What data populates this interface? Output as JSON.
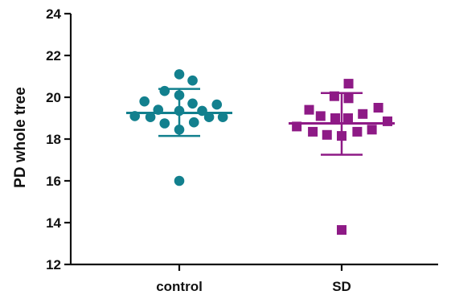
{
  "chart_data": {
    "type": "scatter",
    "title": "",
    "xlabel": "",
    "ylabel": "PD whole tree",
    "ylim": [
      12,
      24
    ],
    "yticks": [
      12,
      14,
      16,
      18,
      20,
      22,
      24
    ],
    "categories": [
      "control",
      "SD"
    ],
    "grid": false,
    "legend": "none",
    "series": [
      {
        "category": "control",
        "marker": "circle",
        "color": "#12808e",
        "points": [
          {
            "offset": 0.0,
            "y": 21.1
          },
          {
            "offset": 0.29,
            "y": 20.8
          },
          {
            "offset": -0.32,
            "y": 20.3
          },
          {
            "offset": 0.0,
            "y": 20.1
          },
          {
            "offset": -0.76,
            "y": 19.8
          },
          {
            "offset": 0.29,
            "y": 19.7
          },
          {
            "offset": 0.82,
            "y": 19.65
          },
          {
            "offset": -0.46,
            "y": 19.4
          },
          {
            "offset": 0.0,
            "y": 19.35
          },
          {
            "offset": 0.5,
            "y": 19.35
          },
          {
            "offset": -0.97,
            "y": 19.1
          },
          {
            "offset": -0.63,
            "y": 19.05
          },
          {
            "offset": 0.65,
            "y": 19.05
          },
          {
            "offset": 0.95,
            "y": 19.05
          },
          {
            "offset": -0.32,
            "y": 18.75
          },
          {
            "offset": 0.32,
            "y": 18.8
          },
          {
            "offset": 0.0,
            "y": 18.45
          },
          {
            "offset": 0.0,
            "y": 16.0
          }
        ],
        "mean": 19.25,
        "sd_low": 18.15,
        "sd_high": 20.4
      },
      {
        "category": "SD",
        "marker": "square",
        "color": "#8e1a86",
        "points": [
          {
            "offset": 0.15,
            "y": 20.65
          },
          {
            "offset": -0.16,
            "y": 20.05
          },
          {
            "offset": 0.15,
            "y": 19.95
          },
          {
            "offset": 0.8,
            "y": 19.5
          },
          {
            "offset": -0.71,
            "y": 19.4
          },
          {
            "offset": 0.46,
            "y": 19.2
          },
          {
            "offset": -0.46,
            "y": 19.1
          },
          {
            "offset": -0.14,
            "y": 19.0
          },
          {
            "offset": 0.14,
            "y": 19.0
          },
          {
            "offset": 1.0,
            "y": 18.85
          },
          {
            "offset": -0.98,
            "y": 18.6
          },
          {
            "offset": 0.66,
            "y": 18.45
          },
          {
            "offset": -0.63,
            "y": 18.35
          },
          {
            "offset": 0.34,
            "y": 18.35
          },
          {
            "offset": -0.32,
            "y": 18.2
          },
          {
            "offset": 0.0,
            "y": 18.15
          },
          {
            "offset": 0.0,
            "y": 13.65
          }
        ],
        "mean": 18.75,
        "sd_low": 17.25,
        "sd_high": 20.2
      }
    ]
  }
}
